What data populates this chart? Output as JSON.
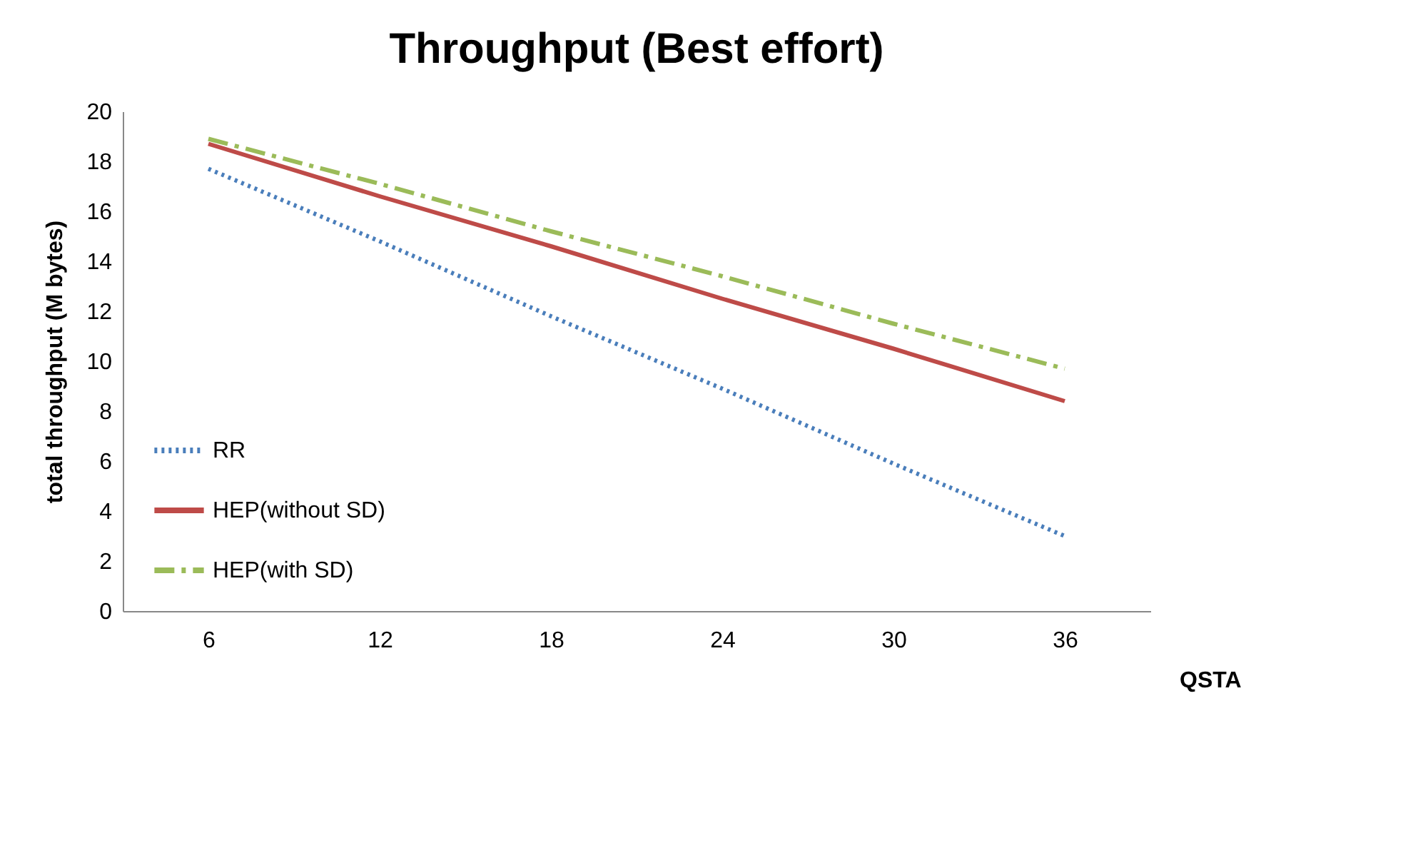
{
  "chart_data": {
    "type": "line",
    "title": "Throughput (Best effort)",
    "xlabel": "QSTA",
    "ylabel": "total throughput (M bytes)",
    "categories": [
      "6",
      "12",
      "18",
      "24",
      "30",
      "36"
    ],
    "series": [
      {
        "name": "RR",
        "color": "#4a7ebb",
        "line_style": "dotted",
        "values": [
          17.7,
          14.8,
          11.8,
          8.9,
          5.9,
          3.0
        ]
      },
      {
        "name": "HEP(without SD)",
        "color": "#be4b48",
        "line_style": "solid",
        "values": [
          18.7,
          16.6,
          14.6,
          12.5,
          10.5,
          8.4
        ]
      },
      {
        "name": "HEP(with SD)",
        "color": "#9bbb59",
        "line_style": "dashed",
        "values": [
          18.9,
          17.1,
          15.2,
          13.4,
          11.5,
          9.7
        ]
      }
    ],
    "ylim": [
      0,
      20
    ],
    "yticks": [
      0,
      2,
      4,
      6,
      8,
      10,
      12,
      14,
      16,
      18,
      20
    ],
    "grid": false,
    "legend": "bottom left",
    "marker": "none"
  }
}
